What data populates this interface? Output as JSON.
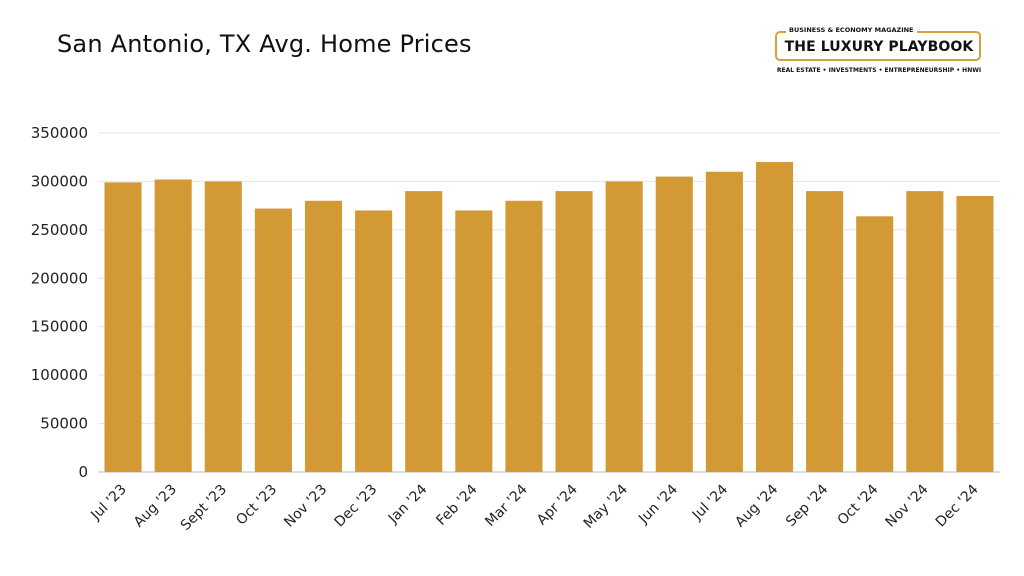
{
  "title": "San Antonio, TX Avg. Home Prices",
  "logo": {
    "kicker": "BUSINESS & ECONOMY MAGAZINE",
    "name": "THE LUXURY PLAYBOOK",
    "tagline": "REAL ESTATE • INVESTMENTS • ENTREPRENEURSHIP • HNWI",
    "accent_color": "#d4a13a"
  },
  "chart_data": {
    "type": "bar",
    "title": "San Antonio, TX Avg. Home Prices",
    "xlabel": "",
    "ylabel": "",
    "categories": [
      "Jul '23",
      "Aug '23",
      "Sept '23",
      "Oct '23",
      "Nov '23",
      "Dec '23",
      "Jan '24",
      "Feb '24",
      "Mar '24",
      "Apr '24",
      "May '24",
      "Jun '24",
      "Jul '24",
      "Aug '24",
      "Sep '24",
      "Oct '24",
      "Nov '24",
      "Dec '24"
    ],
    "values": [
      299000,
      302000,
      300000,
      272000,
      280000,
      270000,
      290000,
      270000,
      280000,
      290000,
      300000,
      305000,
      310000,
      320000,
      290000,
      264000,
      290000,
      285000
    ],
    "ylim": [
      0,
      350000
    ],
    "yticks": [
      "0",
      "50000",
      "100000",
      "150000",
      "200000",
      "250000",
      "300000",
      "350000"
    ],
    "grid": true,
    "legend": "none",
    "bar_color": "#d39935"
  }
}
